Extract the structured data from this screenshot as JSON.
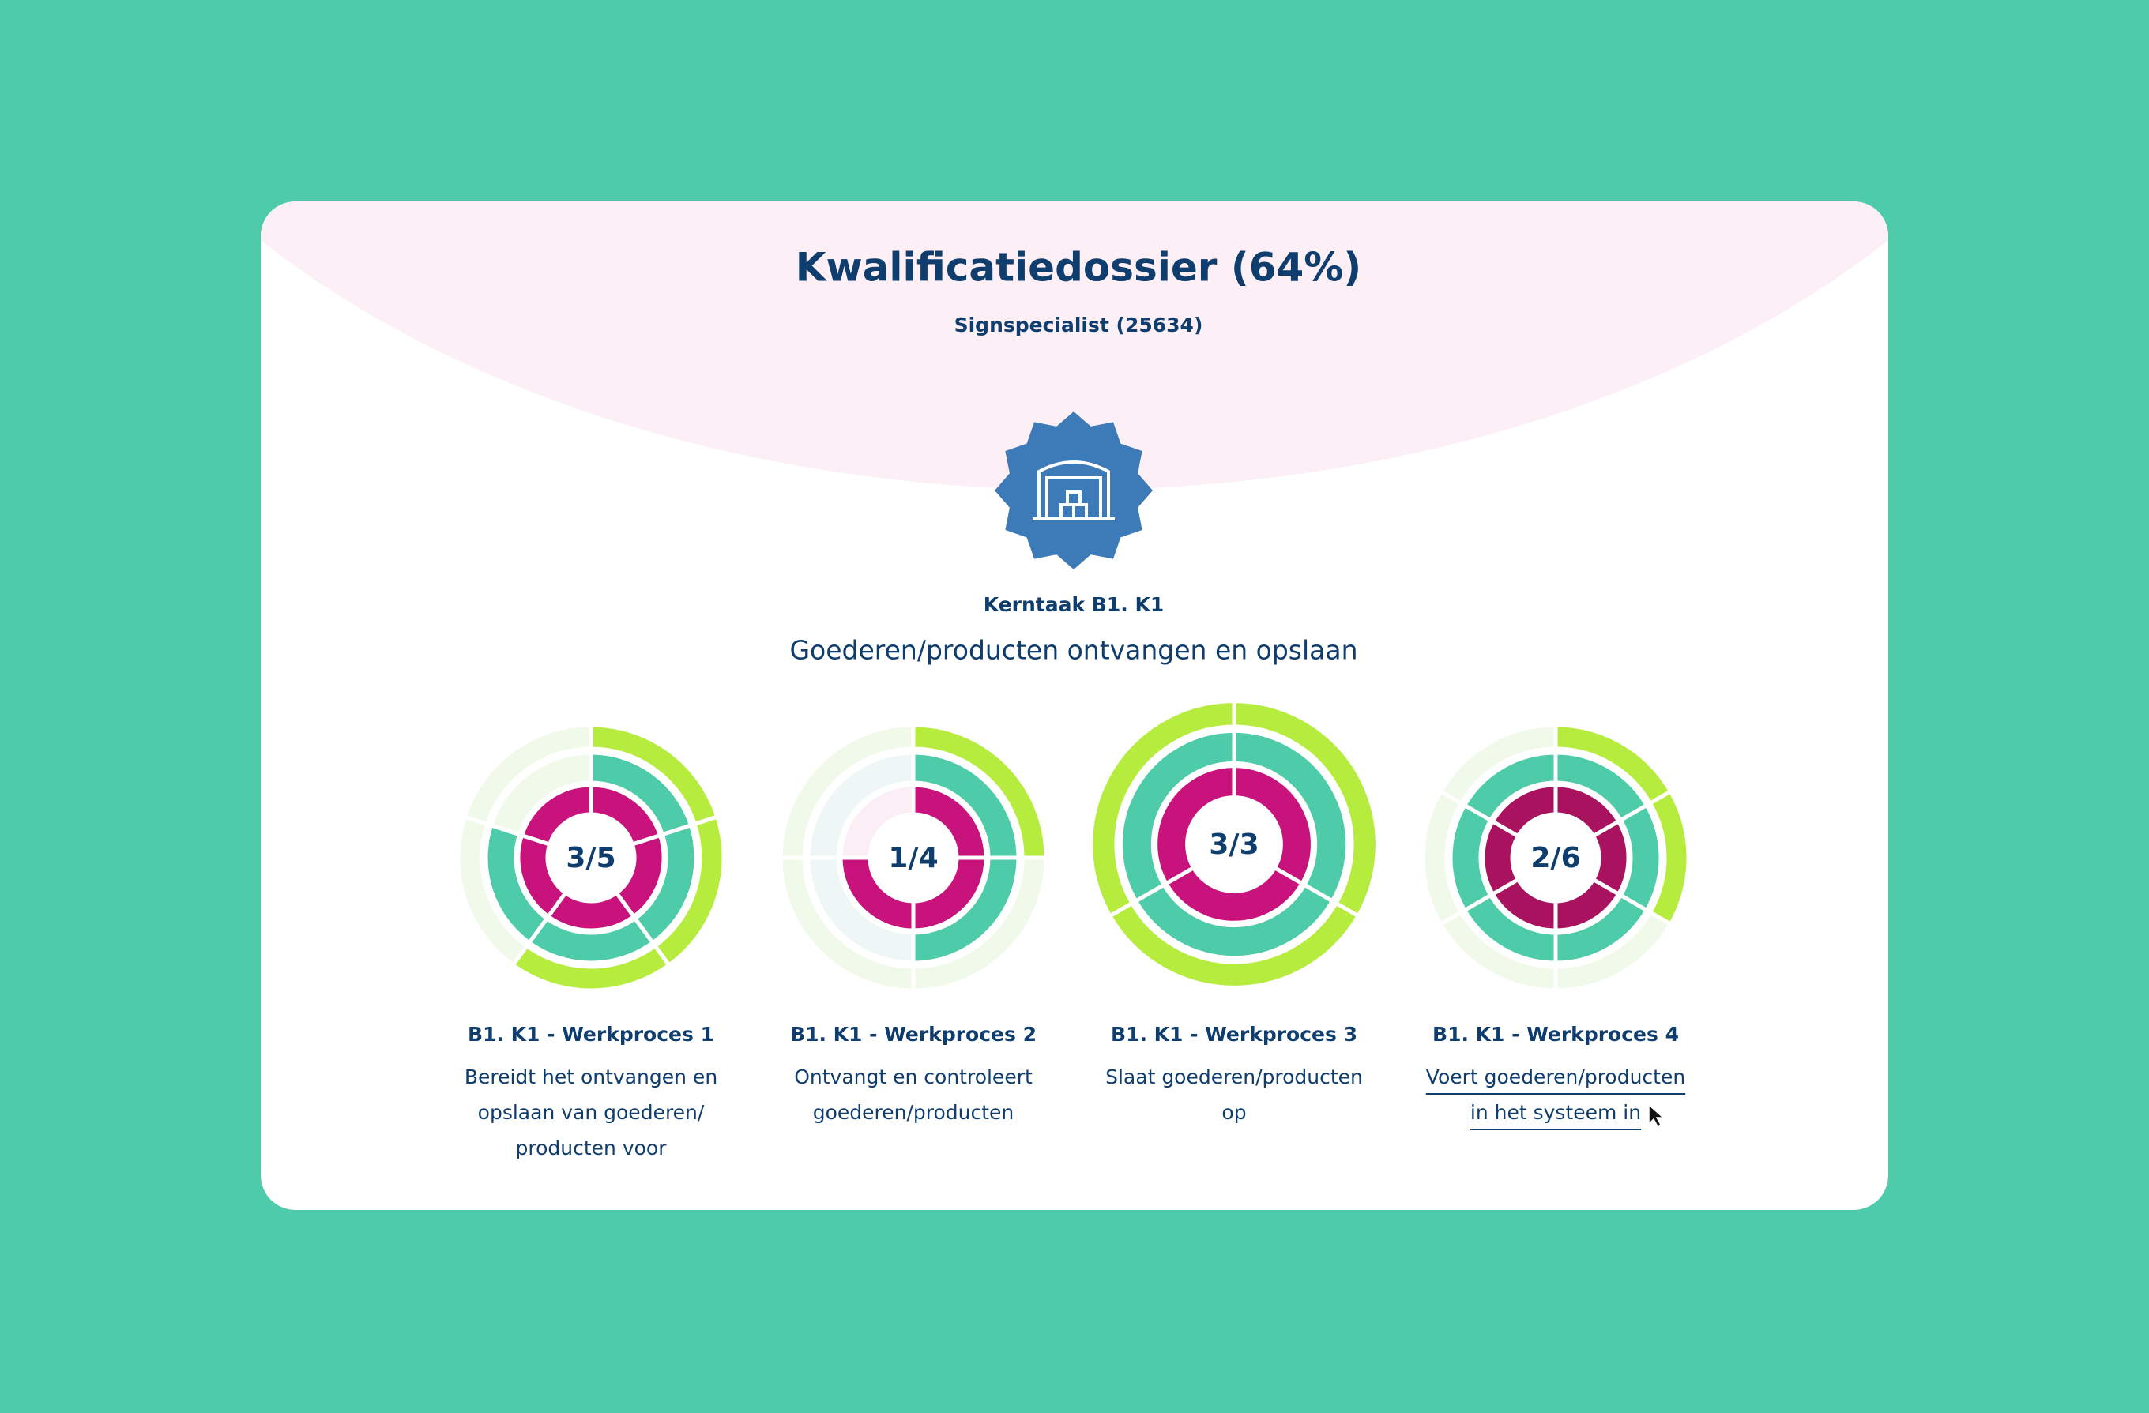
{
  "header": {
    "title": "Kwalificatiedossier (64%)",
    "subtitle": "Signspecialist (25634)"
  },
  "kerntaak": {
    "label": "Kerntaak B1. K1",
    "title": "Goederen/producten ontvangen en opslaan"
  },
  "processes": [
    {
      "score": "3/5",
      "title": "B1. K1 - Werkproces 1",
      "description": [
        "Bereidt het ontvangen en",
        "opslaan van goederen/",
        "producten voor"
      ]
    },
    {
      "score": "1/4",
      "title": "B1. K1 - Werkproces 2",
      "description": [
        "Ontvangt en controleert",
        "goederen/producten"
      ]
    },
    {
      "score": "3/3",
      "title": "B1. K1 - Werkproces 3",
      "description": [
        "Slaat goederen/producten",
        "op"
      ]
    },
    {
      "score": "2/6",
      "title": "B1. K1 - Werkproces 4",
      "description": [
        "Voert goederen/producten",
        "in het systeem in"
      ]
    }
  ]
}
